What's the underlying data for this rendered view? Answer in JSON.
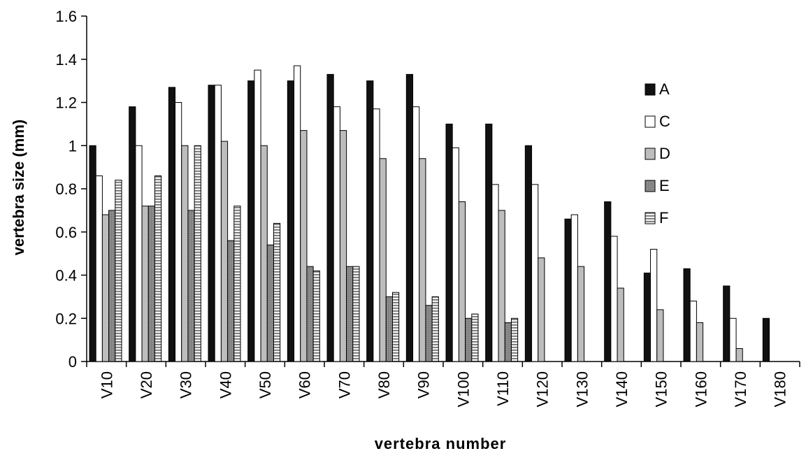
{
  "chart_data": {
    "type": "bar",
    "xlabel": "vertebra number",
    "ylabel": "vertebra size (mm)",
    "ylim": [
      0,
      1.6
    ],
    "yticks": [
      0,
      0.2,
      0.4,
      0.6,
      0.8,
      1,
      1.2,
      1.4,
      1.6
    ],
    "ytick_labels": [
      "0",
      "0.2",
      "0.4",
      "0.6",
      "0.8",
      "1",
      "1.2",
      "1.4",
      "1.6"
    ],
    "categories": [
      "V10",
      "V20",
      "V30",
      "V40",
      "V50",
      "V60",
      "V70",
      "V80",
      "V90",
      "V100",
      "V110",
      "V120",
      "V130",
      "V140",
      "V150",
      "V160",
      "V170",
      "V180"
    ],
    "legend_position": "right",
    "series": [
      {
        "name": "A",
        "style": "black",
        "values": [
          1.0,
          1.18,
          1.27,
          1.28,
          1.3,
          1.3,
          1.33,
          1.3,
          1.33,
          1.1,
          1.1,
          1.0,
          0.66,
          0.74,
          0.41,
          0.43,
          0.35,
          0.2
        ]
      },
      {
        "name": "C",
        "style": "white",
        "values": [
          0.86,
          1.0,
          1.2,
          1.28,
          1.35,
          1.37,
          1.18,
          1.17,
          1.18,
          0.99,
          0.82,
          0.82,
          0.68,
          0.58,
          0.52,
          0.28,
          0.2,
          null
        ]
      },
      {
        "name": "D",
        "style": "lightgray",
        "values": [
          0.68,
          0.72,
          1.0,
          1.02,
          1.0,
          1.07,
          1.07,
          0.94,
          0.94,
          0.74,
          0.7,
          0.48,
          0.44,
          0.34,
          0.24,
          0.18,
          0.06,
          null
        ]
      },
      {
        "name": "E",
        "style": "darkgray",
        "values": [
          0.7,
          0.72,
          0.7,
          0.56,
          0.54,
          0.44,
          0.44,
          0.3,
          0.26,
          0.2,
          0.18,
          null,
          null,
          null,
          null,
          null,
          null,
          null
        ]
      },
      {
        "name": "F",
        "style": "hatched",
        "values": [
          0.84,
          0.86,
          1.0,
          0.72,
          0.64,
          0.42,
          0.44,
          0.32,
          0.3,
          0.22,
          0.2,
          null,
          null,
          null,
          null,
          null,
          null,
          null
        ]
      }
    ]
  }
}
